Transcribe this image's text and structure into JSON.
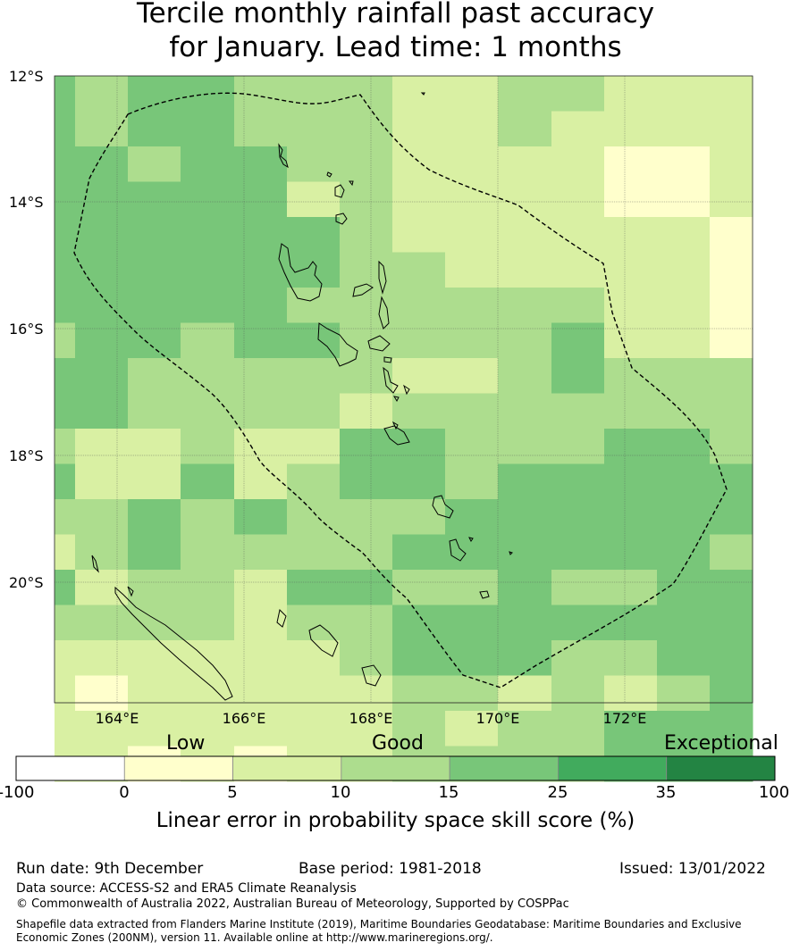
{
  "title": {
    "line1": "Tercile monthly rainfall past accuracy",
    "line2": "for January. Lead time: 1 months"
  },
  "map": {
    "lat_labels": [
      "12°S",
      "14°S",
      "16°S",
      "18°S",
      "20°S"
    ],
    "lon_labels": [
      "164°E",
      "166°E",
      "168°E",
      "170°E",
      "172°E"
    ],
    "grid": [
      [
        4,
        3,
        4,
        4,
        3,
        3,
        3,
        2,
        2,
        3,
        3,
        2,
        2,
        2
      ],
      [
        4,
        3,
        4,
        4,
        3,
        3,
        3,
        2,
        2,
        3,
        2,
        2,
        2,
        2
      ],
      [
        4,
        4,
        3,
        4,
        4,
        3,
        3,
        2,
        2,
        2,
        2,
        1,
        1,
        2
      ],
      [
        4,
        4,
        4,
        4,
        4,
        2,
        3,
        2,
        2,
        2,
        2,
        1,
        1,
        2
      ],
      [
        4,
        4,
        4,
        4,
        4,
        4,
        3,
        2,
        2,
        2,
        2,
        2,
        2,
        1
      ],
      [
        4,
        4,
        4,
        4,
        4,
        4,
        3,
        3,
        2,
        2,
        2,
        2,
        2,
        1
      ],
      [
        4,
        4,
        4,
        4,
        4,
        3,
        3,
        3,
        3,
        3,
        3,
        2,
        2,
        1
      ],
      [
        3,
        4,
        4,
        3,
        4,
        4,
        3,
        3,
        3,
        3,
        4,
        2,
        2,
        1
      ],
      [
        4,
        4,
        3,
        3,
        3,
        3,
        3,
        2,
        2,
        3,
        4,
        3,
        3,
        3
      ],
      [
        4,
        4,
        3,
        3,
        3,
        3,
        2,
        3,
        3,
        3,
        3,
        3,
        3,
        3
      ],
      [
        3,
        2,
        2,
        3,
        2,
        2,
        4,
        4,
        3,
        3,
        3,
        4,
        4,
        3
      ],
      [
        4,
        2,
        2,
        4,
        2,
        3,
        4,
        4,
        3,
        4,
        4,
        4,
        4,
        4
      ],
      [
        3,
        3,
        4,
        3,
        4,
        3,
        3,
        3,
        4,
        4,
        4,
        4,
        4,
        4
      ],
      [
        2,
        3,
        4,
        3,
        3,
        3,
        3,
        4,
        4,
        4,
        4,
        4,
        4,
        3
      ],
      [
        4,
        2,
        3,
        3,
        2,
        4,
        4,
        3,
        3,
        4,
        3,
        3,
        4,
        4
      ],
      [
        3,
        3,
        3,
        3,
        2,
        3,
        3,
        4,
        4,
        4,
        4,
        4,
        4,
        4
      ],
      [
        2,
        2,
        2,
        2,
        2,
        2,
        3,
        4,
        4,
        4,
        3,
        3,
        4,
        4
      ],
      [
        2,
        1,
        2,
        2,
        2,
        2,
        2,
        3,
        3,
        2,
        3,
        2,
        3,
        4
      ],
      [
        2,
        2,
        2,
        2,
        2,
        2,
        2,
        3,
        2,
        3,
        3,
        4,
        4,
        4
      ],
      [
        2,
        2,
        1,
        2,
        1,
        2,
        2,
        3,
        3,
        3,
        3,
        4,
        4,
        4
      ]
    ]
  },
  "colorbar": {
    "category_labels": [
      "Low",
      "Good",
      "Exceptional"
    ],
    "tick_labels": [
      "-100",
      "0",
      "5",
      "10",
      "15",
      "25",
      "35",
      "100"
    ],
    "colors": [
      "#ffffff",
      "#ffffcc",
      "#d9f0a3",
      "#addd8e",
      "#78c679",
      "#41ab5d",
      "#238443"
    ],
    "title": "Linear error in probability space skill score (%)"
  },
  "footer": {
    "run_date": "Run date: 9th December",
    "base_period": "Base period: 1981-2018",
    "issued": "Issued: 13/01/2022",
    "data_source": "Data source: ACCESS-S2 and ERA5 Climate Reanalysis",
    "copyright": "© Commonwealth of Australia 2022, Australian Bureau of Meteorology, Supported by COSPPac",
    "shapefile_line1": "Shapefile data extracted from Flanders Marine Institute (2019), Maritime Boundaries Geodatabase: Maritime Boundaries and Exclusive",
    "shapefile_line2": "Economic Zones (200NM), version 11. Available online at http://www.marineregions.org/."
  }
}
